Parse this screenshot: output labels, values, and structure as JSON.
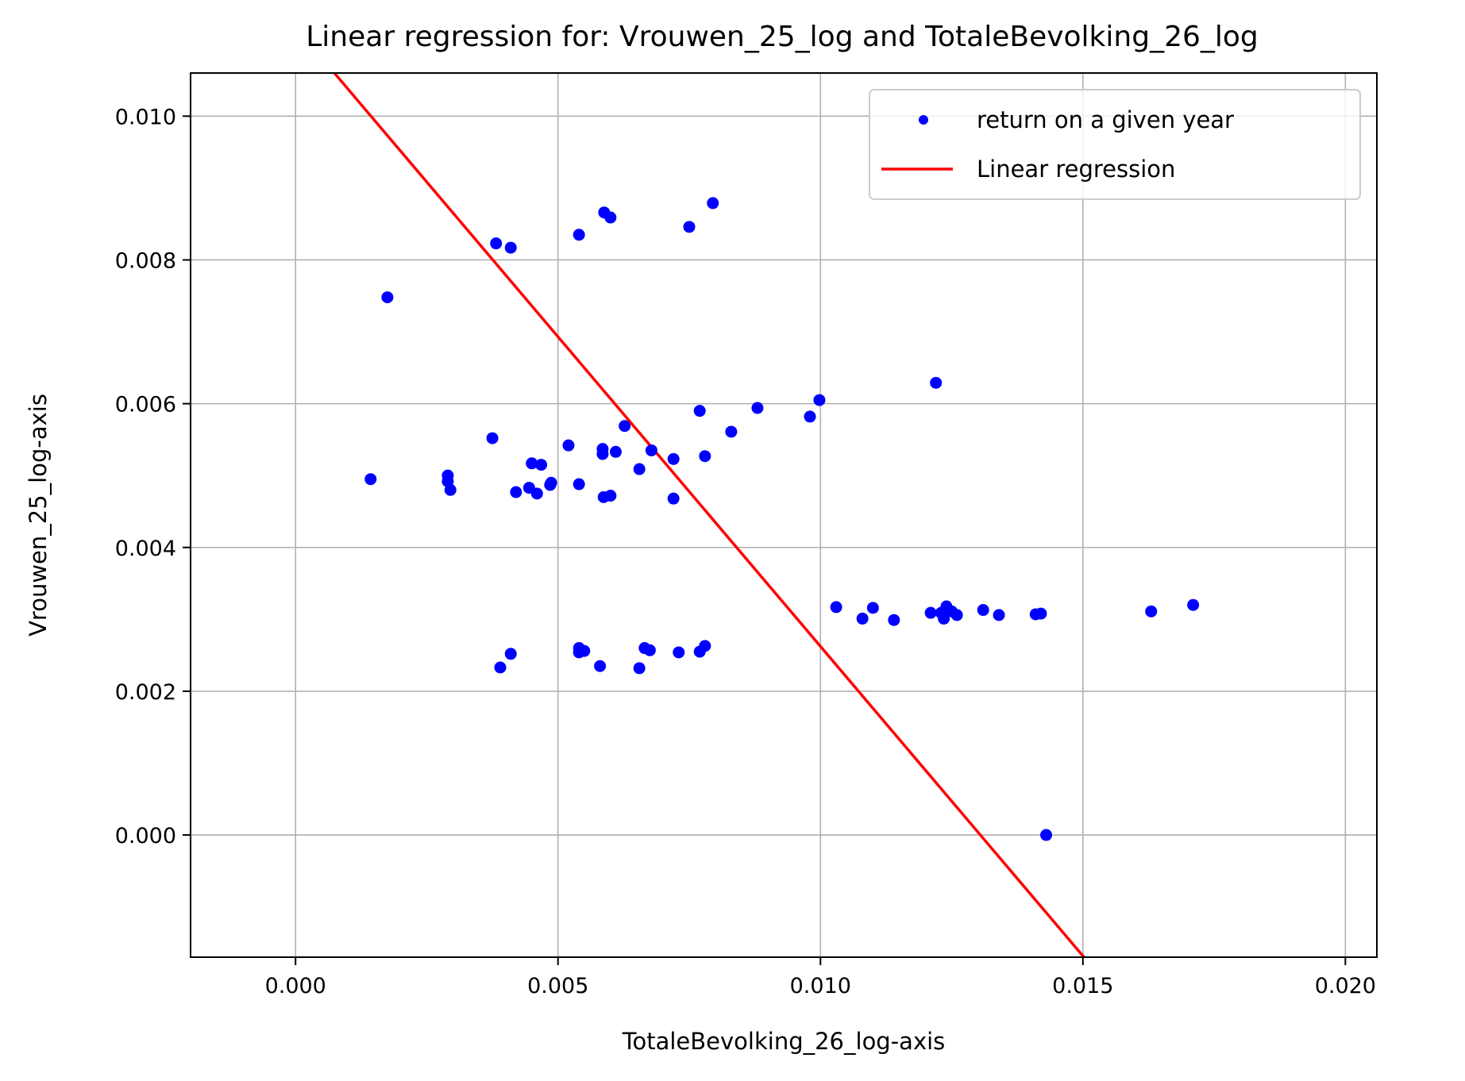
{
  "chart_data": {
    "type": "scatter",
    "title": "Linear regression for: Vrouwen_25_log and TotaleBevolking_26_log",
    "xlabel": "TotaleBevolking_26_log-axis",
    "ylabel": "Vrouwen_25_log-axis",
    "xlim": [
      -0.002,
      0.0206
    ],
    "ylim": [
      -0.0017,
      0.0106
    ],
    "xticks": [
      "0.000",
      "0.005",
      "0.010",
      "0.015",
      "0.020"
    ],
    "xtick_values": [
      0.0,
      0.005,
      0.01,
      0.015,
      0.02
    ],
    "yticks": [
      "0.000",
      "0.002",
      "0.004",
      "0.006",
      "0.008",
      "0.010"
    ],
    "ytick_values": [
      0.0,
      0.002,
      0.004,
      0.006,
      0.008,
      0.01
    ],
    "grid": true,
    "legend_position": "top-right",
    "series": [
      {
        "name": "return on a given year",
        "kind": "scatter",
        "color": "#0000ff",
        "points": [
          [
            0.00143,
            0.00495
          ],
          [
            0.00175,
            0.00748
          ],
          [
            0.0029,
            0.00492
          ],
          [
            0.0029,
            0.005
          ],
          [
            0.00295,
            0.0048
          ],
          [
            0.00375,
            0.00552
          ],
          [
            0.00382,
            0.00823
          ],
          [
            0.0041,
            0.00817
          ],
          [
            0.0042,
            0.00477
          ],
          [
            0.00445,
            0.00483
          ],
          [
            0.0045,
            0.00517
          ],
          [
            0.0046,
            0.00475
          ],
          [
            0.00468,
            0.00515
          ],
          [
            0.00485,
            0.00487
          ],
          [
            0.00487,
            0.0049
          ],
          [
            0.0052,
            0.00542
          ],
          [
            0.0054,
            0.00835
          ],
          [
            0.0054,
            0.00488
          ],
          [
            0.00585,
            0.00537
          ],
          [
            0.00585,
            0.0053
          ],
          [
            0.00587,
            0.0047
          ],
          [
            0.006,
            0.00472
          ],
          [
            0.00588,
            0.00866
          ],
          [
            0.006,
            0.00859
          ],
          [
            0.0061,
            0.00533
          ],
          [
            0.00627,
            0.00569
          ],
          [
            0.00655,
            0.00509
          ],
          [
            0.00678,
            0.00535
          ],
          [
            0.0072,
            0.00523
          ],
          [
            0.0072,
            0.00468
          ],
          [
            0.0075,
            0.00846
          ],
          [
            0.0077,
            0.0059
          ],
          [
            0.0078,
            0.00527
          ],
          [
            0.00795,
            0.00879
          ],
          [
            0.0083,
            0.00561
          ],
          [
            0.0088,
            0.00594
          ],
          [
            0.0098,
            0.00582
          ],
          [
            0.00998,
            0.00605
          ],
          [
            0.0122,
            0.00629
          ],
          [
            0.0039,
            0.00233
          ],
          [
            0.0041,
            0.00252
          ],
          [
            0.0054,
            0.0026
          ],
          [
            0.0054,
            0.00254
          ],
          [
            0.0055,
            0.00256
          ],
          [
            0.0058,
            0.00235
          ],
          [
            0.00655,
            0.00232
          ],
          [
            0.00665,
            0.0026
          ],
          [
            0.00675,
            0.00257
          ],
          [
            0.0073,
            0.00254
          ],
          [
            0.0077,
            0.00255
          ],
          [
            0.0078,
            0.00263
          ],
          [
            0.0103,
            0.00317
          ],
          [
            0.0108,
            0.00301
          ],
          [
            0.011,
            0.00316
          ],
          [
            0.0114,
            0.00299
          ],
          [
            0.0121,
            0.00309
          ],
          [
            0.0123,
            0.00309
          ],
          [
            0.01235,
            0.00301
          ],
          [
            0.0124,
            0.00318
          ],
          [
            0.0125,
            0.00311
          ],
          [
            0.0126,
            0.00306
          ],
          [
            0.0131,
            0.00313
          ],
          [
            0.0134,
            0.00306
          ],
          [
            0.0141,
            0.00307
          ],
          [
            0.0142,
            0.00308
          ],
          [
            0.0163,
            0.00311
          ],
          [
            0.0171,
            0.0032
          ],
          [
            0.0143,
            0.0
          ]
        ]
      },
      {
        "name": "Linear regression",
        "kind": "line",
        "color": "#ff0000",
        "points": [
          [
            0.00074,
            0.0106
          ],
          [
            0.01502,
            -0.0017
          ]
        ]
      }
    ]
  }
}
